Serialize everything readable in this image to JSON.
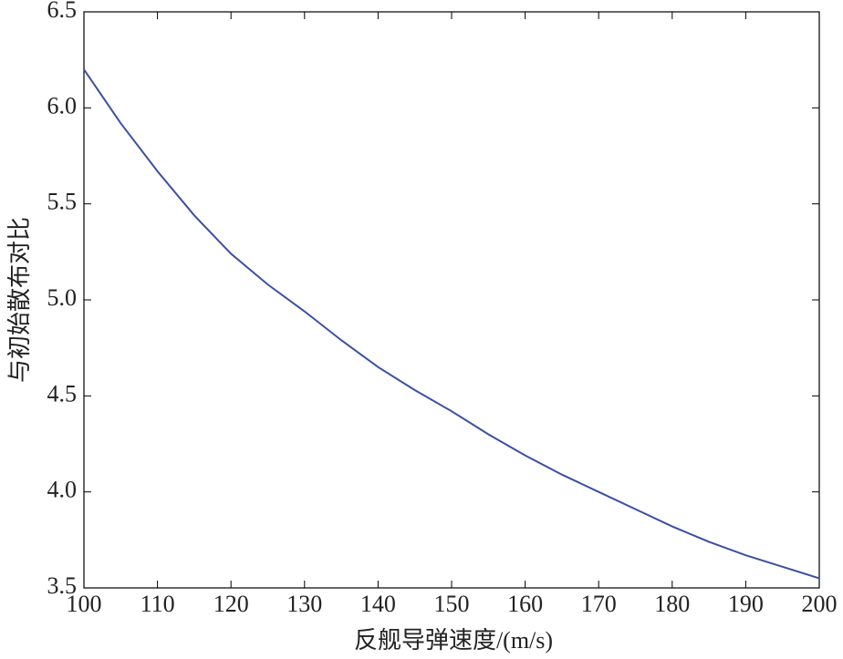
{
  "chart_data": {
    "type": "line",
    "x_label": "反舰导弹速度/(m/s)",
    "y_label": "与初始散布对比",
    "x": [
      100,
      105,
      110,
      115,
      120,
      125,
      130,
      135,
      140,
      145,
      150,
      155,
      160,
      165,
      170,
      175,
      180,
      185,
      190,
      195,
      200
    ],
    "series": [
      {
        "color": "#3b4fa3",
        "values": [
          6.2,
          5.92,
          5.67,
          5.44,
          5.24,
          5.08,
          4.94,
          4.79,
          4.65,
          4.53,
          4.42,
          4.3,
          4.19,
          4.09,
          4.0,
          3.91,
          3.82,
          3.74,
          3.67,
          3.61,
          3.55
        ]
      }
    ],
    "xlim": [
      100,
      200
    ],
    "xticks": [
      100,
      110,
      120,
      130,
      140,
      150,
      160,
      170,
      180,
      190,
      200
    ],
    "ylim": [
      3.5,
      6.5
    ],
    "yticks": [
      3.5,
      {
        "value": 4,
        "label": "4.0"
      },
      4.5,
      {
        "value": 5,
        "label": "5.0"
      },
      5.5,
      {
        "value": 6,
        "label": "6.0"
      },
      6.5
    ]
  }
}
